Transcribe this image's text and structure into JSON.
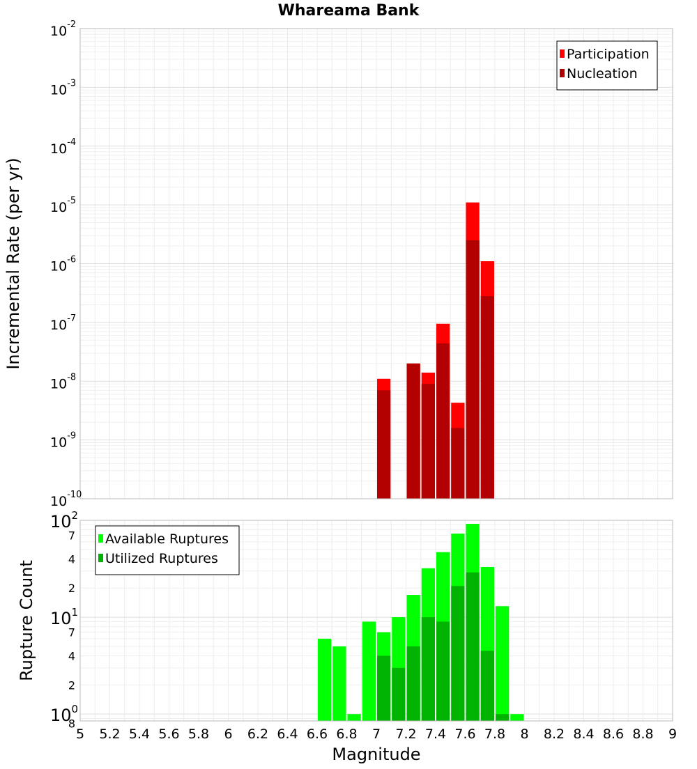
{
  "chart_data": [
    {
      "type": "bar",
      "title": "Whareama Bank",
      "ylabel": "Incremental Rate (per yr)",
      "yscale": "log",
      "ylim": [
        1e-10,
        0.01
      ],
      "xlim": [
        5,
        9
      ],
      "grid": true,
      "legend_position": "top-right",
      "y_ticks": [
        {
          "base": "10",
          "exp": "-2",
          "value": 0.01
        },
        {
          "base": "10",
          "exp": "-3",
          "value": 0.001
        },
        {
          "base": "10",
          "exp": "-4",
          "value": 0.0001
        },
        {
          "base": "10",
          "exp": "-5",
          "value": 1e-05
        },
        {
          "base": "10",
          "exp": "-6",
          "value": 1e-06
        },
        {
          "base": "10",
          "exp": "-7",
          "value": 1e-07
        },
        {
          "base": "10",
          "exp": "-8",
          "value": 1e-08
        },
        {
          "base": "10",
          "exp": "-9",
          "value": 1e-09
        },
        {
          "base": "10",
          "exp": "-10",
          "value": 1e-10
        }
      ],
      "series": [
        {
          "name": "Participation",
          "color": "#ff0000",
          "x": [
            7.05,
            7.25,
            7.35,
            7.45,
            7.55,
            7.65,
            7.75
          ],
          "values": [
            1.1e-08,
            2e-08,
            1.4e-08,
            9.5e-08,
            4.3e-09,
            1.1e-05,
            1.1e-06
          ]
        },
        {
          "name": "Nucleation",
          "color": "#b30000",
          "x": [
            7.05,
            7.25,
            7.35,
            7.45,
            7.55,
            7.65,
            7.75
          ],
          "values": [
            7e-09,
            2e-08,
            9e-09,
            4.4e-08,
            1.6e-09,
            2.5e-06,
            2.8e-07
          ]
        }
      ]
    },
    {
      "type": "bar",
      "ylabel": "Rupture Count",
      "xlabel": "Magnitude",
      "yscale": "log",
      "ylim": [
        0.85,
        100
      ],
      "xlim": [
        5,
        9
      ],
      "grid": true,
      "legend_position": "top-left",
      "x_ticks": [
        "5",
        "5.2",
        "5.4",
        "5.6",
        "5.8",
        "6",
        "6.2",
        "6.4",
        "6.6",
        "6.8",
        "7",
        "7.2",
        "7.4",
        "7.6",
        "7.8",
        "8",
        "8.2",
        "8.4",
        "8.6",
        "8.8",
        "9"
      ],
      "y_major_ticks": [
        {
          "base": "10",
          "exp": "2",
          "value": 100
        },
        {
          "base": "10",
          "exp": "1",
          "value": 10
        },
        {
          "base": "10",
          "exp": "0",
          "value": 1
        }
      ],
      "y_minor_ticks": [
        {
          "label": "7",
          "value": 70
        },
        {
          "label": "4",
          "value": 40
        },
        {
          "label": "2",
          "value": 20
        },
        {
          "label": "7",
          "value": 7
        },
        {
          "label": "4",
          "value": 4
        },
        {
          "label": "2",
          "value": 2
        },
        {
          "label": "8",
          "value": 0.8
        }
      ],
      "series": [
        {
          "name": "Available Ruptures",
          "color": "#00ff00",
          "x": [
            6.65,
            6.75,
            6.85,
            6.95,
            7.05,
            7.15,
            7.25,
            7.35,
            7.45,
            7.55,
            7.65,
            7.75,
            7.85,
            7.95
          ],
          "values": [
            6,
            5,
            1,
            9,
            7,
            10,
            17,
            32,
            47,
            73,
            92,
            33,
            13,
            1
          ]
        },
        {
          "name": "Utilized Ruptures",
          "color": "#00b300",
          "x": [
            7.05,
            7.15,
            7.25,
            7.35,
            7.45,
            7.55,
            7.65,
            7.75,
            7.85
          ],
          "values": [
            4,
            3,
            5,
            10,
            9,
            21,
            29,
            4.5,
            1
          ]
        }
      ]
    }
  ]
}
